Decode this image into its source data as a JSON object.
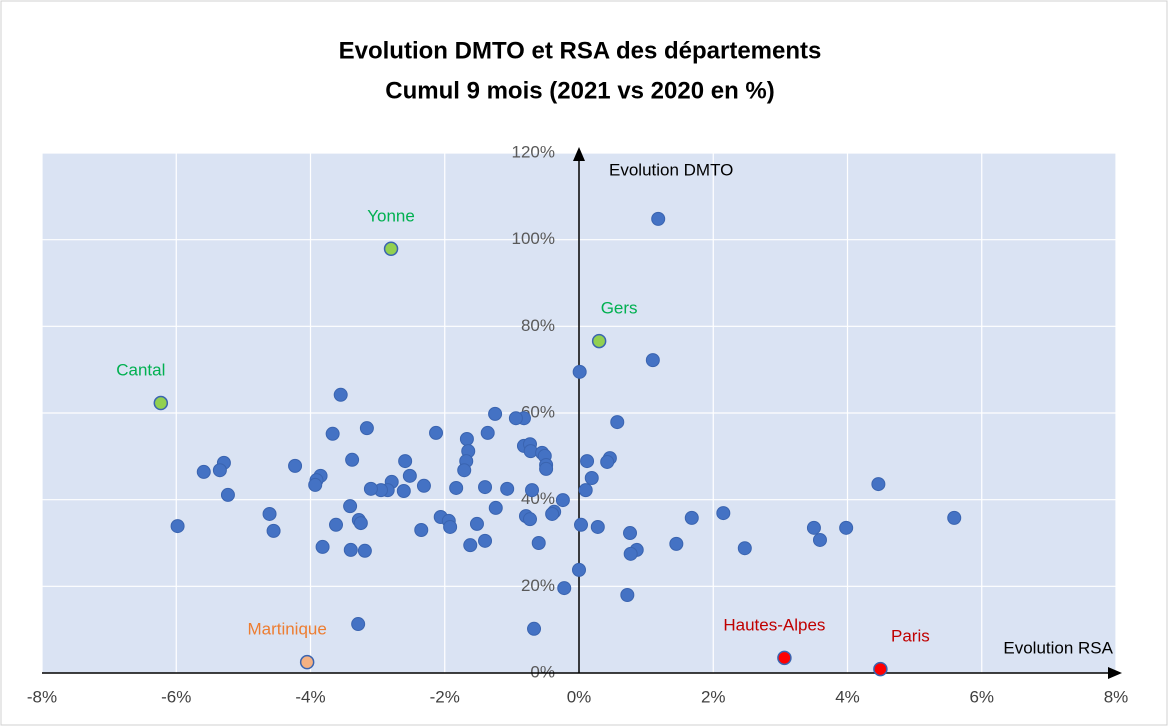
{
  "chart_data": {
    "type": "scatter",
    "title": "Evolution DMTO et RSA des départements",
    "subtitle": "Cumul 9 mois (2021 vs 2020 en %)",
    "x_label": "Evolution RSA",
    "y_label": "Evolution DMTO",
    "xlim": [
      -8,
      8
    ],
    "ylim": [
      0,
      120
    ],
    "xticks": [
      {
        "value": -8,
        "label": "-8%"
      },
      {
        "value": -6,
        "label": "-6%"
      },
      {
        "value": -4,
        "label": "-4%"
      },
      {
        "value": -2,
        "label": "-2%"
      },
      {
        "value": 0,
        "label": "0%"
      },
      {
        "value": 2,
        "label": "2%"
      },
      {
        "value": 4,
        "label": "4%"
      },
      {
        "value": 6,
        "label": "6%"
      },
      {
        "value": 8,
        "label": "8%"
      }
    ],
    "yticks": [
      {
        "value": 0,
        "label": "0%"
      },
      {
        "value": 20,
        "label": "20%"
      },
      {
        "value": 40,
        "label": "40%"
      },
      {
        "value": 60,
        "label": "60%"
      },
      {
        "value": 80,
        "label": "80%"
      },
      {
        "value": 100,
        "label": "100%"
      },
      {
        "value": 120,
        "label": "120%"
      }
    ],
    "grid": true,
    "series": [
      {
        "color": "#4472c4",
        "x": [
          1.18,
          1.1,
          0.01,
          -3.55,
          0.57,
          -1.25,
          -0.82,
          -0.94,
          -3.16,
          -3.67,
          -2.13,
          -1.36,
          -1.67,
          -0.82,
          -0.73,
          -1.65,
          -0.72,
          -0.55,
          -0.51,
          -3.38,
          -2.59,
          0.12,
          0.46,
          0.42,
          -0.49,
          -0.49,
          -1.68,
          -5.29,
          -5.35,
          -5.59,
          -4.23,
          -1.71,
          -3.85,
          -2.52,
          -3.91,
          -3.93,
          -2.79,
          -2.85,
          -2.95,
          -3.1,
          -2.61,
          -2.31,
          -1.83,
          -1.4,
          -1.07,
          -0.7,
          0.1,
          0.19,
          4.46,
          -5.23,
          -0.24,
          -3.41,
          -1.24,
          -0.37,
          -0.4,
          -0.79,
          -0.73,
          -2.06,
          -1.94,
          -1.92,
          -1.52,
          -3.28,
          -3.25,
          -3.62,
          0.03,
          0.28,
          -4.61,
          -4.55,
          -5.98,
          -2.35,
          0.76,
          1.68,
          2.15,
          3.5,
          3.98,
          3.59,
          5.59,
          -3.82,
          -3.4,
          -3.19,
          -1.62,
          -1.4,
          -0.6,
          1.45,
          0.86,
          0.77,
          2.47,
          0.0,
          -0.22,
          0.72,
          -3.29,
          -0.67
        ],
        "y": [
          104.8,
          72.2,
          69.5,
          64.2,
          57.9,
          59.8,
          58.8,
          58.8,
          56.5,
          55.2,
          55.4,
          55.4,
          54.0,
          52.4,
          52.8,
          51.2,
          51.2,
          50.8,
          50.1,
          49.2,
          48.9,
          48.9,
          49.6,
          48.7,
          48.0,
          47.1,
          48.9,
          48.5,
          46.8,
          46.4,
          47.8,
          46.8,
          45.5,
          45.5,
          44.5,
          43.4,
          44.1,
          42.2,
          42.2,
          42.5,
          42.0,
          43.2,
          42.7,
          42.9,
          42.5,
          42.2,
          42.2,
          45.0,
          43.6,
          41.1,
          39.9,
          38.5,
          38.1,
          37.2,
          36.7,
          36.2,
          35.5,
          36.0,
          35.1,
          33.7,
          34.4,
          35.3,
          34.6,
          34.2,
          34.2,
          33.7,
          36.7,
          32.8,
          33.9,
          33.0,
          32.3,
          35.8,
          36.9,
          33.5,
          33.5,
          30.7,
          35.8,
          29.1,
          28.4,
          28.2,
          29.5,
          30.5,
          30.0,
          29.8,
          28.4,
          27.5,
          28.8,
          23.8,
          19.6,
          18.0,
          11.3,
          10.2
        ]
      }
    ],
    "highlights": [
      {
        "label": "Yonne",
        "x": -2.8,
        "y": 97.9,
        "color": "#92d050",
        "label_color": "#00b050"
      },
      {
        "label": "Gers",
        "x": 0.3,
        "y": 76.6,
        "color": "#92d050",
        "label_color": "#00b050"
      },
      {
        "label": "Cantal",
        "x": -6.23,
        "y": 62.3,
        "color": "#92d050",
        "label_color": "#00b050"
      },
      {
        "label": "Martinique",
        "x": -4.05,
        "y": 2.5,
        "color": "#f4b183",
        "label_color": "#ed7d31"
      },
      {
        "label": "Hautes-Alpes",
        "x": 3.06,
        "y": 3.5,
        "color": "#ff0000",
        "label_color": "#c00000"
      },
      {
        "label": "Paris",
        "x": 4.49,
        "y": 0.9,
        "color": "#ff0000",
        "label_color": "#c00000"
      }
    ]
  }
}
